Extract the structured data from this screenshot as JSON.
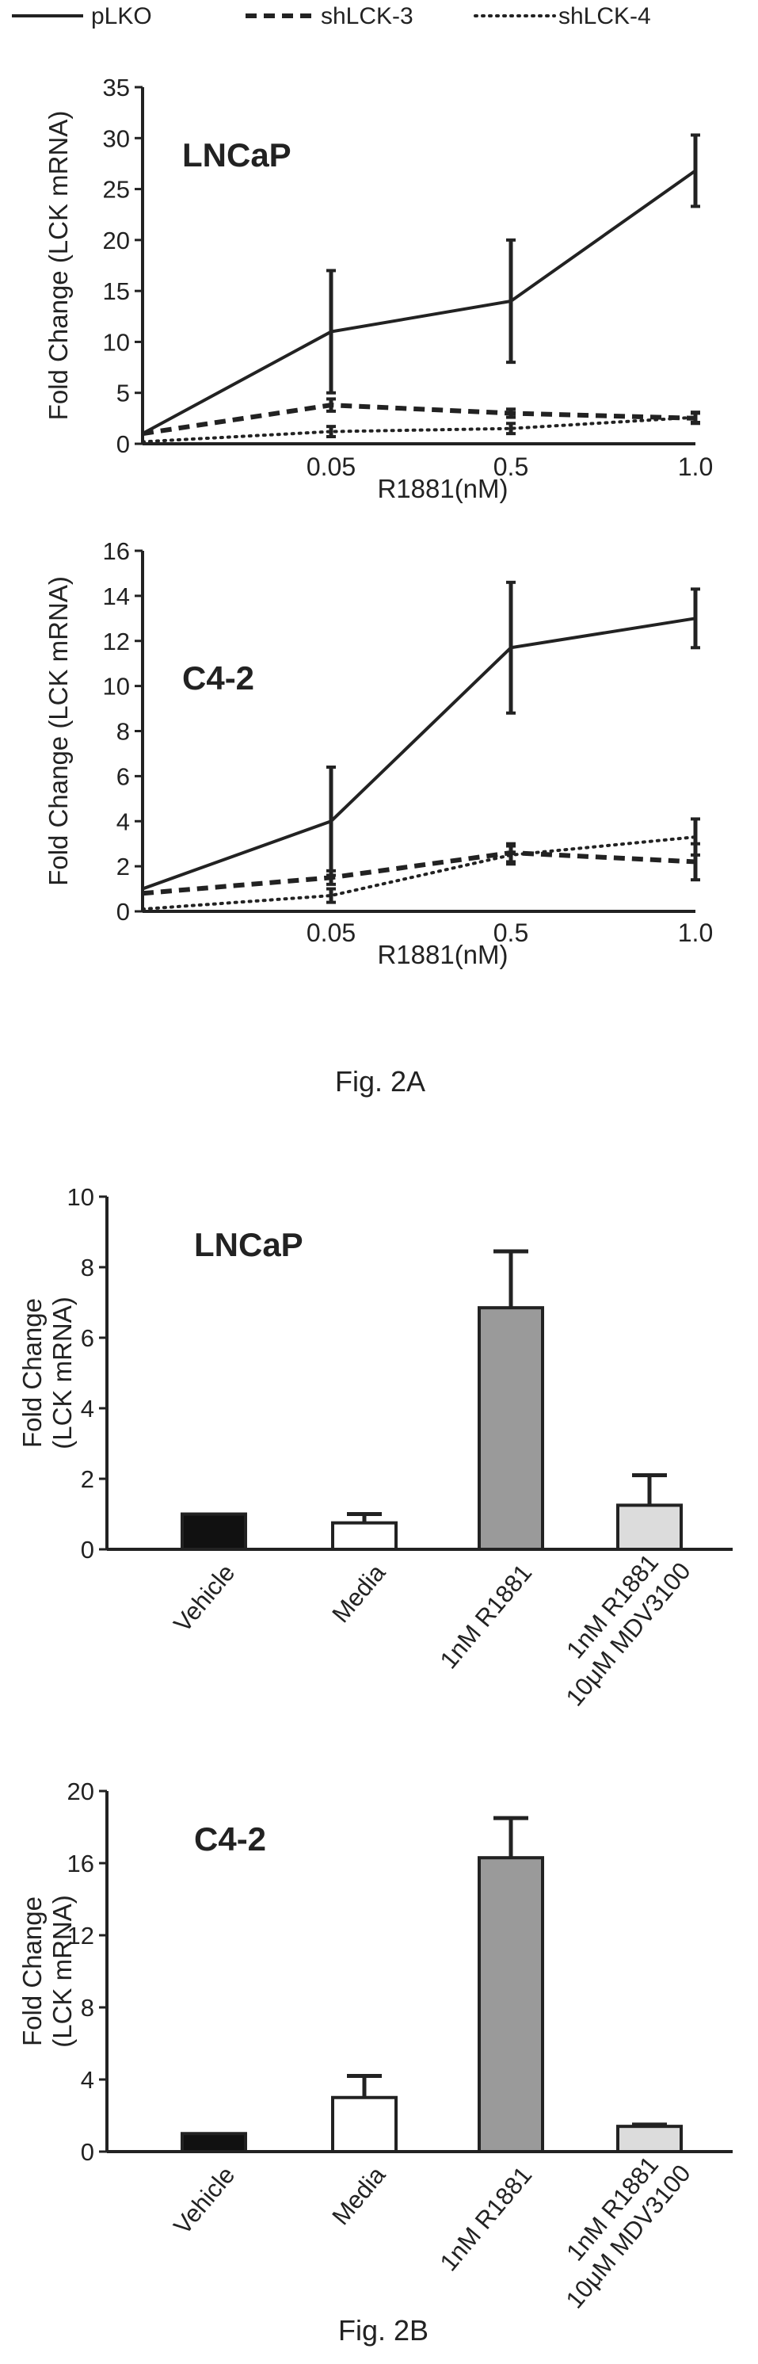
{
  "legend": {
    "items": [
      {
        "label": "pLKO",
        "dash": "solid"
      },
      {
        "label": "shLCK-3",
        "dash": "dashed"
      },
      {
        "label": "shLCK-4",
        "dash": "dotted"
      }
    ]
  },
  "captions": {
    "fig2a": "Fig. 2A",
    "fig2b": "Fig. 2B"
  },
  "chart_data": [
    {
      "type": "line",
      "title": "LNCaP",
      "xlabel": "R1881(nM)",
      "ylabel": "Fold Change (LCK mRNA)",
      "categories": [
        "",
        "0.05",
        "0.5",
        "1.0"
      ],
      "ylim": [
        0,
        35
      ],
      "yticks": [
        0,
        5,
        10,
        15,
        20,
        25,
        30,
        35
      ],
      "series": [
        {
          "name": "pLKO",
          "dash": "solid",
          "values": [
            1,
            11,
            14,
            26.8
          ],
          "err": [
            0,
            6,
            6,
            3.5
          ]
        },
        {
          "name": "shLCK-3",
          "dash": "dashed",
          "values": [
            1,
            3.8,
            3,
            2.5
          ],
          "err": [
            0,
            0.6,
            0.4,
            0.5
          ]
        },
        {
          "name": "shLCK-4",
          "dash": "dotted",
          "values": [
            0.2,
            1.2,
            1.5,
            2.6
          ],
          "err": [
            0,
            0.5,
            0.5,
            0.5
          ]
        }
      ]
    },
    {
      "type": "line",
      "title": "C4-2",
      "xlabel": "R1881(nM)",
      "ylabel": "Fold Change (LCK mRNA)",
      "categories": [
        "",
        "0.05",
        "0.5",
        "1.0"
      ],
      "ylim": [
        0,
        16
      ],
      "yticks": [
        0,
        2,
        4,
        6,
        8,
        10,
        12,
        14,
        16
      ],
      "series": [
        {
          "name": "pLKO",
          "dash": "solid",
          "values": [
            1,
            4,
            11.7,
            13
          ],
          "err": [
            0,
            2.4,
            2.9,
            1.3
          ]
        },
        {
          "name": "shLCK-3",
          "dash": "dashed",
          "values": [
            0.8,
            1.5,
            2.6,
            2.2
          ],
          "err": [
            0,
            0.3,
            0.4,
            0.8
          ]
        },
        {
          "name": "shLCK-4",
          "dash": "dotted",
          "values": [
            0.1,
            0.7,
            2.5,
            3.3
          ],
          "err": [
            0,
            0.3,
            0.4,
            0.8
          ]
        }
      ]
    },
    {
      "type": "bar",
      "title": "LNCaP",
      "xlabel": "",
      "ylabel": "Fold Change (LCK mRNA)",
      "categories": [
        "Vehicle",
        "Media",
        "1nM R1881",
        "1nM R1881 10μM MDV3100"
      ],
      "values": [
        1,
        0.75,
        6.85,
        1.25
      ],
      "err": [
        0,
        0.25,
        1.6,
        0.85
      ],
      "colors": [
        "#111111",
        "#ffffff",
        "#9a9a9a",
        "#dcdcdc"
      ],
      "ylim": [
        0,
        10
      ],
      "yticks": [
        0,
        2,
        4,
        6,
        8,
        10
      ]
    },
    {
      "type": "bar",
      "title": "C4-2",
      "xlabel": "",
      "ylabel": "Fold Change (LCK mRNA)",
      "categories": [
        "Vehicle",
        "Media",
        "1nM R1881",
        "1nM R1881 10μM MDV3100"
      ],
      "values": [
        1,
        3,
        16.3,
        1.4
      ],
      "err": [
        0,
        1.2,
        2.2,
        0.1
      ],
      "colors": [
        "#111111",
        "#ffffff",
        "#9a9a9a",
        "#dcdcdc"
      ],
      "ylim": [
        0,
        20
      ],
      "yticks": [
        0,
        4,
        8,
        12,
        16,
        20
      ]
    }
  ]
}
